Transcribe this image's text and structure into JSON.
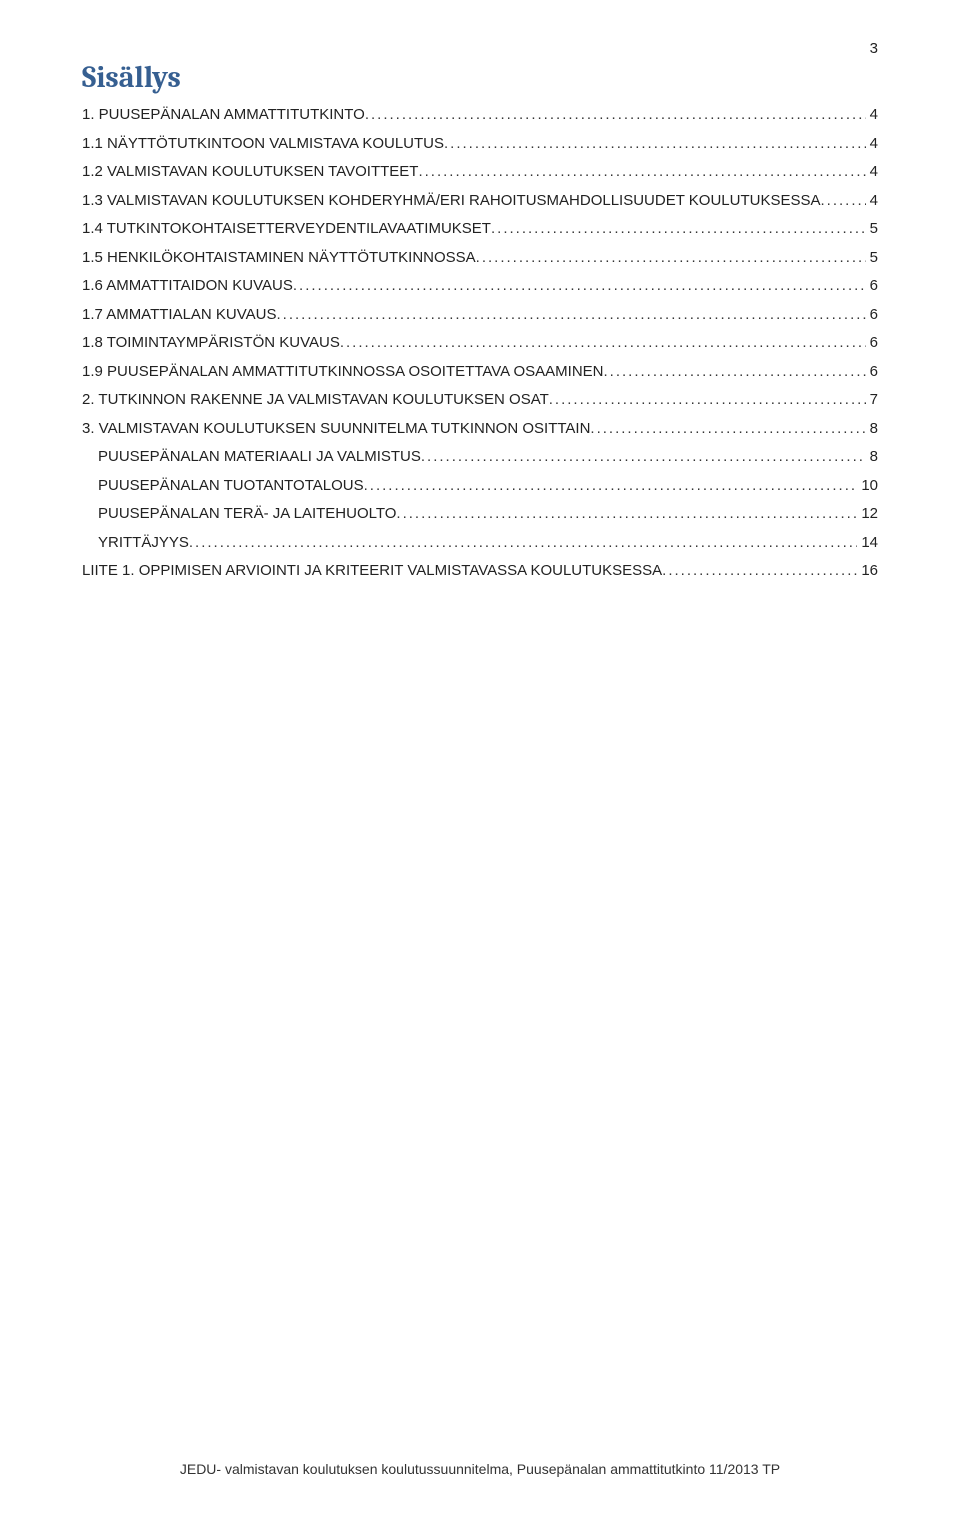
{
  "pageNumber": "3",
  "title": "Sisällys",
  "titleColor": "#365f91",
  "textColor": "#222222",
  "backgroundColor": "#ffffff",
  "fontSizeBody": 15,
  "fontSizeTitle": 30,
  "toc": [
    {
      "label": "1. PUUSEPÄNALAN AMMATTITUTKINTO",
      "page": "4",
      "indent": 0
    },
    {
      "label": "1.1 NÄYTTÖTUTKINTOON VALMISTAVA KOULUTUS",
      "page": "4",
      "indent": 0
    },
    {
      "label": "1.2 VALMISTAVAN KOULUTUKSEN TAVOITTEET",
      "page": "4",
      "indent": 0
    },
    {
      "label": "1.3 VALMISTAVAN KOULUTUKSEN KOHDERYHMÄ/ERI RAHOITUSMAHDOLLISUUDET KOULUTUKSESSA",
      "page": "4",
      "indent": 0
    },
    {
      "label": "1.4 TUTKINTOKOHTAISETTERVEYDENTILAVAATIMUKSET",
      "page": "5",
      "indent": 0
    },
    {
      "label": "1.5 HENKILÖKOHTAISTAMINEN NÄYTTÖTUTKINNOSSA",
      "page": "5",
      "indent": 0
    },
    {
      "label": "1.6 AMMATTITAIDON KUVAUS",
      "page": "6",
      "indent": 0
    },
    {
      "label": "1.7 AMMATTIALAN KUVAUS",
      "page": "6",
      "indent": 0
    },
    {
      "label": "1.8 TOIMINTAYMPÄRISTÖN KUVAUS",
      "page": "6",
      "indent": 0
    },
    {
      "label": "1.9 PUUSEPÄNALAN AMMATTITUTKINNOSSA OSOITETTAVA OSAAMINEN",
      "page": "6",
      "indent": 0
    },
    {
      "label": "2. TUTKINNON RAKENNE JA VALMISTAVAN KOULUTUKSEN OSAT",
      "page": "7",
      "indent": 0
    },
    {
      "label": "3. VALMISTAVAN KOULUTUKSEN SUUNNITELMA TUTKINNON OSITTAIN",
      "page": "8",
      "indent": 0
    },
    {
      "label": "PUUSEPÄNALAN MATERIAALI JA VALMISTUS",
      "page": "8",
      "indent": 1
    },
    {
      "label": "PUUSEPÄNALAN TUOTANTOTALOUS",
      "page": "10",
      "indent": 1
    },
    {
      "label": "PUUSEPÄNALAN TERÄ- JA LAITEHUOLTO",
      "page": "12",
      "indent": 1
    },
    {
      "label": "YRITTÄJYYS",
      "page": "14",
      "indent": 1
    },
    {
      "label": "LIITE 1. OPPIMISEN ARVIOINTI JA KRITEERIT VALMISTAVASSA KOULUTUKSESSA",
      "page": "16",
      "indent": 0
    }
  ],
  "footer": "JEDU- valmistavan koulutuksen koulutussuunnitelma, Puusepänalan ammattitutkinto 11/2013 TP"
}
